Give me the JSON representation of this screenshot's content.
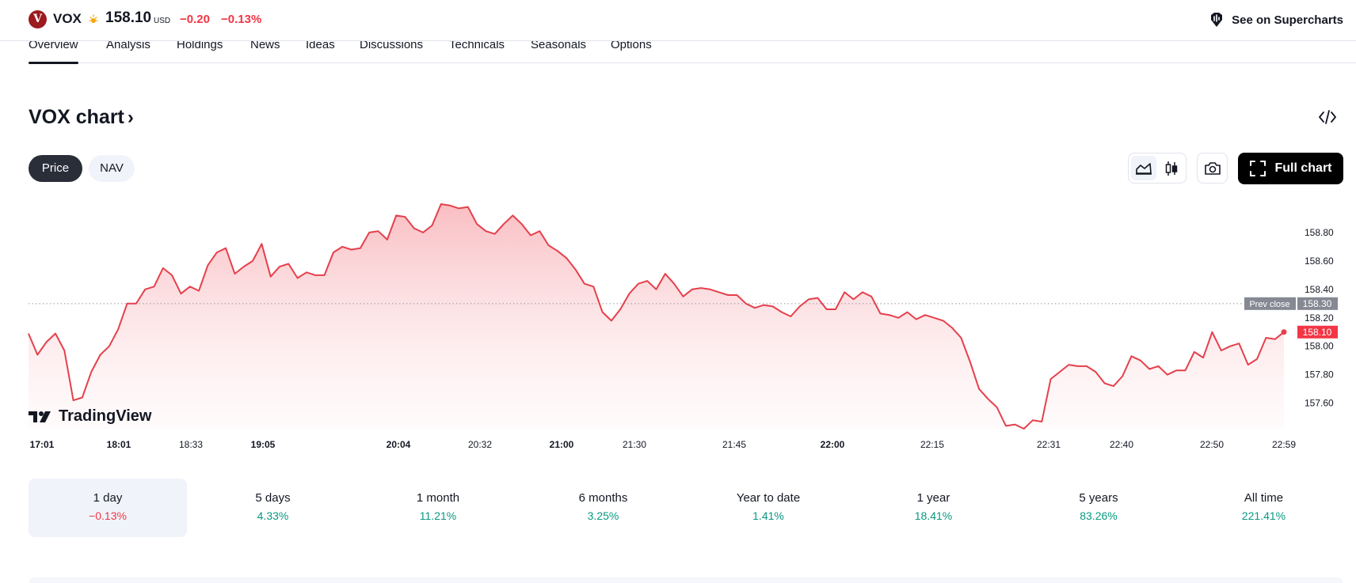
{
  "header": {
    "logo_letter": "V",
    "ticker": "VOX",
    "price": "158.10",
    "currency": "USD",
    "change_abs": "−0.20",
    "change_pct": "−0.13%",
    "supercharts_label": "See on Supercharts"
  },
  "tabs": [
    {
      "label": "Overview",
      "active": true
    },
    {
      "label": "Analysis"
    },
    {
      "label": "Holdings"
    },
    {
      "label": "News"
    },
    {
      "label": "Ideas"
    },
    {
      "label": "Discussions"
    },
    {
      "label": "Technicals"
    },
    {
      "label": "Seasonals"
    },
    {
      "label": "Options"
    }
  ],
  "chart_section": {
    "title": "VOX chart",
    "chevron": "›",
    "price_toggle": "Price",
    "nav_toggle": "NAV",
    "full_chart_label": "Full chart",
    "tradingview_label": "TradingView"
  },
  "chart_data": {
    "type": "area",
    "symbol": "VOX",
    "y_ticks": [
      157.6,
      157.8,
      158.0,
      158.2,
      158.4,
      158.6,
      158.8
    ],
    "y_tick_labels": [
      "157.60",
      "157.80",
      "158.00",
      "158.20",
      "158.40",
      "158.60",
      "158.80"
    ],
    "ylim": [
      157.42,
      159.0
    ],
    "x_ticks": [
      {
        "label": "17:01",
        "bold": true
      },
      {
        "label": "18:01",
        "bold": true
      },
      {
        "label": "18:33",
        "bold": false
      },
      {
        "label": "19:05",
        "bold": true
      },
      {
        "label": "20:04",
        "bold": true
      },
      {
        "label": "20:32",
        "bold": false
      },
      {
        "label": "21:00",
        "bold": true
      },
      {
        "label": "21:30",
        "bold": false
      },
      {
        "label": "21:45",
        "bold": false
      },
      {
        "label": "22:00",
        "bold": true
      },
      {
        "label": "22:15",
        "bold": false
      },
      {
        "label": "22:31",
        "bold": false
      },
      {
        "label": "22:40",
        "bold": false
      },
      {
        "label": "22:50",
        "bold": false
      },
      {
        "label": "22:59",
        "bold": false
      }
    ],
    "prev_close": 158.3,
    "prev_close_label": "Prev close",
    "prev_close_value": "158.30",
    "last_value": "158.10",
    "line_color": "#e5404c",
    "values": [
      158.09,
      157.94,
      158.03,
      158.09,
      157.97,
      157.62,
      157.64,
      157.82,
      157.94,
      158.0,
      158.12,
      158.3,
      158.3,
      158.4,
      158.42,
      158.55,
      158.5,
      158.37,
      158.42,
      158.39,
      158.57,
      158.66,
      158.69,
      158.51,
      158.56,
      158.6,
      158.72,
      158.49,
      158.56,
      158.58,
      158.48,
      158.52,
      158.5,
      158.5,
      158.66,
      158.7,
      158.68,
      158.69,
      158.8,
      158.81,
      158.75,
      158.92,
      158.91,
      158.83,
      158.8,
      158.85,
      159.0,
      158.99,
      158.97,
      158.98,
      158.86,
      158.81,
      158.79,
      158.86,
      158.92,
      158.86,
      158.78,
      158.81,
      158.71,
      158.67,
      158.62,
      158.54,
      158.44,
      158.42,
      158.24,
      158.18,
      158.26,
      158.37,
      158.44,
      158.46,
      158.4,
      158.51,
      158.44,
      158.35,
      158.4,
      158.41,
      158.4,
      158.38,
      158.36,
      158.36,
      158.3,
      158.27,
      158.29,
      158.28,
      158.24,
      158.21,
      158.28,
      158.33,
      158.34,
      158.26,
      158.26,
      158.38,
      158.33,
      158.38,
      158.35,
      158.23,
      158.22,
      158.2,
      158.24,
      158.19,
      158.22,
      158.2,
      158.18,
      158.13,
      158.06,
      157.89,
      157.7,
      157.63,
      157.57,
      157.44,
      157.45,
      157.42,
      157.48,
      157.47,
      157.77,
      157.82,
      157.87,
      157.86,
      157.86,
      157.82,
      157.74,
      157.72,
      157.79,
      157.93,
      157.9,
      157.84,
      157.86,
      157.8,
      157.83,
      157.83,
      157.96,
      157.92,
      158.1,
      157.97,
      158.0,
      158.02,
      157.87,
      157.91,
      158.06,
      158.05,
      158.1
    ]
  },
  "periods": [
    {
      "label": "1 day",
      "value": "−0.13%",
      "sign": "neg",
      "active": true
    },
    {
      "label": "5 days",
      "value": "4.33%",
      "sign": "pos"
    },
    {
      "label": "1 month",
      "value": "11.21%",
      "sign": "pos"
    },
    {
      "label": "6 months",
      "value": "3.25%",
      "sign": "pos"
    },
    {
      "label": "Year to date",
      "value": "1.41%",
      "sign": "pos"
    },
    {
      "label": "1 year",
      "value": "18.41%",
      "sign": "pos"
    },
    {
      "label": "5 years",
      "value": "83.26%",
      "sign": "pos"
    },
    {
      "label": "All time",
      "value": "221.41%",
      "sign": "pos"
    }
  ],
  "colors": {
    "accent_negative": "#f23645",
    "accent_positive": "#089981",
    "logo": "#9b1b1f",
    "line": "#e5404c"
  },
  "icons": {
    "logo": "vox-logo-icon",
    "session": "sun-icon",
    "supercharts": "supercharts-icon",
    "embed": "embed-code-icon",
    "area_chart": "area-chart-icon",
    "candles": "candlestick-icon",
    "camera": "camera-icon",
    "fullscreen": "fullscreen-icon"
  }
}
